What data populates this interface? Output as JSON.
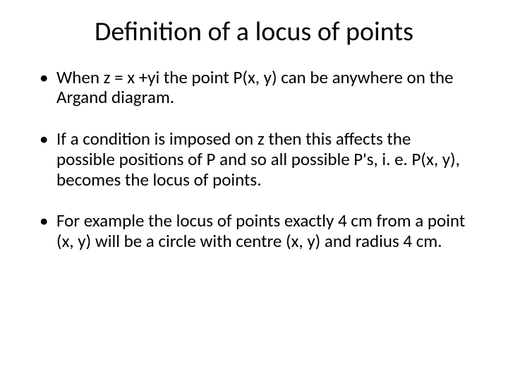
{
  "slide": {
    "title": "Definition of a locus of points",
    "title_fontsize": 38,
    "body_fontsize": 25,
    "text_color": "#000000",
    "background_color": "#ffffff",
    "bullets": [
      "When z = x +yi the point P(x, y) can be anywhere on the Argand diagram.",
      "If a condition is imposed on z then this affects the possible positions of P and so all possible P's, i. e. P(x, y), becomes the locus of points.",
      "For example the locus of points exactly 4 cm from a point (x, y) will be a circle with centre (x, y) and radius 4 cm."
    ]
  }
}
